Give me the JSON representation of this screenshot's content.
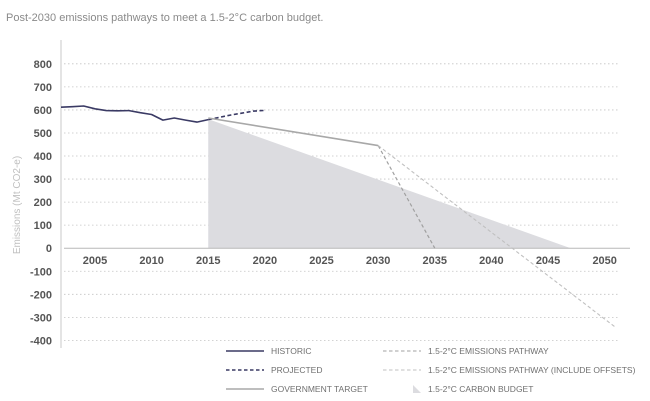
{
  "chart_data": {
    "type": "line",
    "title": "Post-2030 emissions pathways to meet a 1.5-2°C carbon budget.",
    "ylabel": "Emissions (Mt CO2-e)",
    "xlabel": "",
    "xlim": [
      2002,
      2054
    ],
    "ylim": [
      -420,
      860
    ],
    "grid": true,
    "x_ticks": [
      2005,
      2010,
      2015,
      2020,
      2025,
      2030,
      2035,
      2040,
      2045,
      2050
    ],
    "y_ticks": [
      800,
      700,
      600,
      500,
      400,
      300,
      200,
      100,
      0,
      -100,
      -200,
      -300,
      -400
    ],
    "colors": {
      "historic": "#3a3a64",
      "projected": "#3a3a64",
      "government": "#a8a8a8",
      "pathway": "#a0a0a0",
      "offsets": "#c0c0c0",
      "budget": "#dcdce0"
    },
    "series": [
      {
        "name": "HISTORIC",
        "style": "solid",
        "x": [
          2002,
          2003,
          2004,
          2005,
          2006,
          2007,
          2008,
          2009,
          2010,
          2011,
          2012,
          2013,
          2014,
          2015
        ],
        "y": [
          612,
          614,
          617,
          605,
          597,
          596,
          597,
          588,
          580,
          556,
          565,
          556,
          547,
          558
        ]
      },
      {
        "name": "PROJECTED",
        "style": "dashed",
        "x": [
          2015,
          2016,
          2017,
          2018,
          2019,
          2020
        ],
        "y": [
          558,
          568,
          578,
          586,
          595,
          598
        ]
      },
      {
        "name": "GOVERNMENT TARGET",
        "style": "solid",
        "x": [
          2015,
          2030
        ],
        "y": [
          565,
          445
        ]
      },
      {
        "name": "1.5-2°C EMISSIONS PATHWAY",
        "style": "dashed",
        "x": [
          2030,
          2035
        ],
        "y": [
          445,
          0
        ]
      },
      {
        "name": "1.5-2°C EMISSIONS PATHWAY (INCLUDE OFFSETS)",
        "style": "dashed",
        "x": [
          2030,
          2051
        ],
        "y": [
          445,
          -345
        ]
      }
    ],
    "budget_area": {
      "name": "1.5-2°C CARBON BUDGET",
      "points": [
        [
          2015,
          560
        ],
        [
          2047,
          0
        ],
        [
          2015,
          0
        ]
      ]
    },
    "legend": [
      {
        "label": "HISTORIC",
        "key": "historic",
        "style": "solid",
        "kind": "line"
      },
      {
        "label": "1.5-2°C EMISSIONS PATHWAY",
        "key": "pathway",
        "style": "dashed",
        "kind": "line"
      },
      {
        "label": "PROJECTED",
        "key": "projected",
        "style": "dashed",
        "kind": "line"
      },
      {
        "label": "1.5-2°C EMISSIONS PATHWAY (INCLUDE OFFSETS)",
        "key": "offsets",
        "style": "dashed",
        "kind": "line"
      },
      {
        "label": "GOVERNMENT TARGET",
        "key": "government",
        "style": "solid",
        "kind": "line"
      },
      {
        "label": "1.5-2°C CARBON BUDGET",
        "key": "budget",
        "style": "solid",
        "kind": "area"
      }
    ]
  }
}
